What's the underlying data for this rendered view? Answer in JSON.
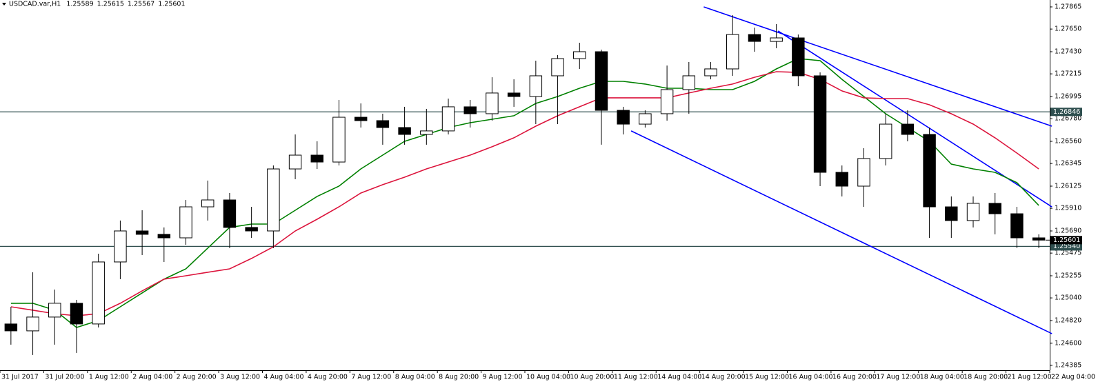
{
  "chart_data": {
    "type": "candlestick",
    "title": "USDCAD.var,H1",
    "header_values": [
      1.25589,
      1.25615,
      1.25567,
      1.25601
    ],
    "categories": [
      "31 Jul 2017",
      null,
      "31 Jul 20:00",
      null,
      "1 Aug 12:00",
      null,
      "2 Aug 04:00",
      null,
      "2 Aug 20:00",
      null,
      "3 Aug 12:00",
      null,
      "4 Aug 04:00",
      null,
      "4 Aug 20:00",
      null,
      "7 Aug 12:00",
      null,
      "8 Aug 04:00",
      null,
      "8 Aug 20:00",
      null,
      "9 Aug 12:00",
      null,
      "10 Aug 04:00",
      null,
      "10 Aug 20:00",
      null,
      "11 Aug 12:00",
      null,
      "14 Aug 04:00",
      null,
      "14 Aug 20:00",
      null,
      "15 Aug 12:00",
      null,
      "16 Aug 04:00",
      null,
      "16 Aug 20:00",
      null,
      "17 Aug 12:00",
      null,
      "18 Aug 04:00",
      null,
      "18 Aug 20:00",
      null,
      "21 Aug 12:00",
      null,
      "22 Aug 04:00"
    ],
    "open": [
      1.24787,
      1.2472,
      1.24854,
      1.24988,
      1.24787,
      1.25389,
      1.2569,
      1.25657,
      1.25623,
      1.25924,
      1.25991,
      1.25724,
      1.2569,
      1.26292,
      1.26426,
      1.26359,
      1.26794,
      1.26761,
      1.26694,
      1.26627,
      1.26661,
      1.26895,
      1.26828,
      1.27029,
      1.26995,
      1.27196,
      1.27363,
      1.2743,
      1.26861,
      1.26727,
      1.26828,
      1.27062,
      1.27196,
      1.27263,
      1.27597,
      1.2753,
      1.27564,
      1.27196,
      1.26259,
      1.26125,
      1.26393,
      1.26727,
      1.26627,
      1.25924,
      1.25791,
      1.25958,
      1.25857,
      1.25623,
      null
    ],
    "high": [
      1.24954,
      1.25289,
      1.25121,
      1.25021,
      1.25469,
      1.25791,
      1.25891,
      1.25724,
      1.25991,
      1.26179,
      1.26058,
      1.25924,
      1.26326,
      1.26627,
      1.2656,
      1.26962,
      1.26928,
      1.26828,
      1.26895,
      1.26875,
      1.26975,
      1.26962,
      1.27182,
      1.27162,
      1.27343,
      1.27397,
      1.27517,
      1.2745,
      1.26895,
      1.26861,
      1.27296,
      1.2733,
      1.2733,
      1.27785,
      1.27664,
      1.27698,
      1.27597,
      1.27229,
      1.26326,
      1.26493,
      1.26828,
      1.26861,
      1.26694,
      1.26025,
      1.26025,
      1.26058,
      1.25924,
      1.25657,
      null
    ],
    "low": [
      1.24586,
      1.24486,
      1.24586,
      1.24506,
      1.24753,
      1.25222,
      1.25456,
      1.25389,
      1.25556,
      1.25791,
      1.25523,
      1.25623,
      1.25523,
      1.26192,
      1.26292,
      1.26326,
      1.26694,
      1.26527,
      1.26527,
      1.26527,
      1.26627,
      1.26694,
      1.26761,
      1.26895,
      1.26727,
      1.26727,
      1.27263,
      1.26527,
      1.26627,
      1.26694,
      1.26761,
      1.26828,
      1.27162,
      1.27196,
      1.2743,
      1.27464,
      1.27095,
      1.26125,
      1.26025,
      1.25924,
      1.26326,
      1.2656,
      1.25623,
      1.25623,
      1.25724,
      1.25657,
      1.25523,
      1.25523,
      null
    ],
    "close": [
      1.2472,
      1.24854,
      1.24988,
      1.24787,
      1.25389,
      1.2569,
      1.25657,
      1.25623,
      1.25924,
      1.25991,
      1.25724,
      1.2569,
      1.26292,
      1.26426,
      1.26359,
      1.26794,
      1.26761,
      1.26694,
      1.26627,
      1.26661,
      1.26895,
      1.26828,
      1.27029,
      1.26995,
      1.27196,
      1.27363,
      1.2743,
      1.26861,
      1.26727,
      1.26828,
      1.27062,
      1.27196,
      1.27263,
      1.27597,
      1.2753,
      1.27564,
      1.27196,
      1.26259,
      1.26125,
      1.26393,
      1.26727,
      1.26627,
      1.25924,
      1.25791,
      1.25958,
      1.25857,
      1.25623,
      1.25601,
      null
    ],
    "series": [
      {
        "color": "#008000",
        "values": [
          1.24988,
          1.24988,
          1.24921,
          1.24753,
          1.2482,
          1.24954,
          1.25088,
          1.25222,
          1.25322,
          1.25523,
          1.25724,
          1.25757,
          1.25757,
          1.25891,
          1.26025,
          1.26125,
          1.26292,
          1.26426,
          1.2656,
          1.26627,
          1.26694,
          1.26741,
          1.26774,
          1.26808,
          1.26928,
          1.26995,
          1.27075,
          1.27142,
          1.27142,
          1.27116,
          1.27075,
          1.27075,
          1.27062,
          1.27062,
          1.27142,
          1.27263,
          1.27363,
          1.27343,
          1.27162,
          1.26995,
          1.26828,
          1.26694,
          1.2656,
          1.26339,
          1.26292,
          1.26259,
          1.26159,
          1.25938,
          null
        ]
      },
      {
        "color": "#dc143c",
        "values": [
          1.24954,
          1.24921,
          1.24887,
          1.24867,
          1.24887,
          1.24988,
          1.25108,
          1.25222,
          1.25255,
          1.25289,
          1.25322,
          1.25423,
          1.25536,
          1.2569,
          1.25804,
          1.25924,
          1.26058,
          1.26139,
          1.26212,
          1.26292,
          1.26359,
          1.26426,
          1.26507,
          1.26594,
          1.26707,
          1.26808,
          1.26895,
          1.26982,
          1.26982,
          1.26982,
          1.26982,
          1.27029,
          1.27075,
          1.27116,
          1.27182,
          1.27236,
          1.27229,
          1.27162,
          1.27049,
          1.26982,
          1.26975,
          1.26975,
          1.26915,
          1.26828,
          1.26727,
          1.26594,
          1.26446,
          1.26292,
          null
        ]
      }
    ],
    "trendlines": [
      {
        "color": "#0000ff",
        "x": [
          31.68,
          47.6
        ],
        "y": [
          1.27865,
          1.26707
        ]
      },
      {
        "color": "#0000ff",
        "x": [
          28.36,
          47.6
        ],
        "y": [
          1.26661,
          1.24693
        ]
      },
      {
        "color": "#0000ff",
        "x": [
          35.08,
          47.6
        ],
        "y": [
          1.27631,
          1.25924
        ]
      }
    ],
    "levels": [
      1.26846,
      {
        "value": 1.2554,
        "label": "1.25540"
      }
    ],
    "level_color": "#2f4f4f",
    "price_line": 1.25601,
    "ylim": [
      1.24338,
      1.27932
    ],
    "yticks": [
      1.27865,
      {
        "value": 1.2765,
        "label": "1.27650"
      },
      {
        "value": 1.2743,
        "label": "1.27430"
      },
      1.27215,
      1.26995,
      {
        "value": 1.2678,
        "label": "1.26780"
      },
      {
        "value": 1.2656,
        "label": "1.26560"
      },
      1.26345,
      1.26125,
      {
        "value": 1.2591,
        "label": "1.25910"
      },
      {
        "value": 1.2569,
        "label": "1.25690"
      },
      1.25475,
      1.25255,
      {
        "value": 1.2504,
        "label": "1.25040"
      },
      {
        "value": 1.2482,
        "label": "1.24820"
      },
      {
        "value": 1.246,
        "label": "1.24600"
      },
      1.24385
    ]
  }
}
